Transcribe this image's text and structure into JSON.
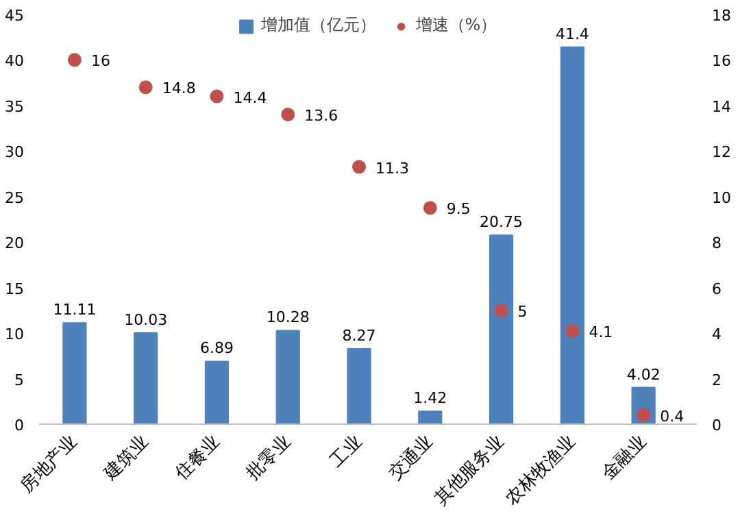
{
  "chart_data": {
    "type": "bar",
    "categories": [
      "房地产业",
      "建筑业",
      "住餐业",
      "批零业",
      "工业",
      "交通业",
      "其他服务业",
      "农林牧渔业",
      "金融业"
    ],
    "series": [
      {
        "name": "增加值（亿元）",
        "color": "#4f81bd",
        "values": [
          11.11,
          10.03,
          6.89,
          10.28,
          8.27,
          1.42,
          20.75,
          41.4,
          4.02
        ]
      },
      {
        "name": "增速（%）",
        "type": "scatter",
        "axis": "y2",
        "color": "#c0504d",
        "values": [
          16,
          14.8,
          14.4,
          13.6,
          11.3,
          9.5,
          5,
          4.1,
          0.4
        ]
      }
    ],
    "ylim": [
      0,
      45
    ],
    "yticks": [
      0,
      5,
      10,
      15,
      20,
      25,
      30,
      35,
      40,
      45
    ],
    "y2lim": [
      0,
      18
    ],
    "y2ticks": [
      0,
      2,
      4,
      6,
      8,
      10,
      12,
      14,
      16,
      18
    ],
    "data_labels": true,
    "legend": "top",
    "grid": false,
    "marker": "circle"
  }
}
